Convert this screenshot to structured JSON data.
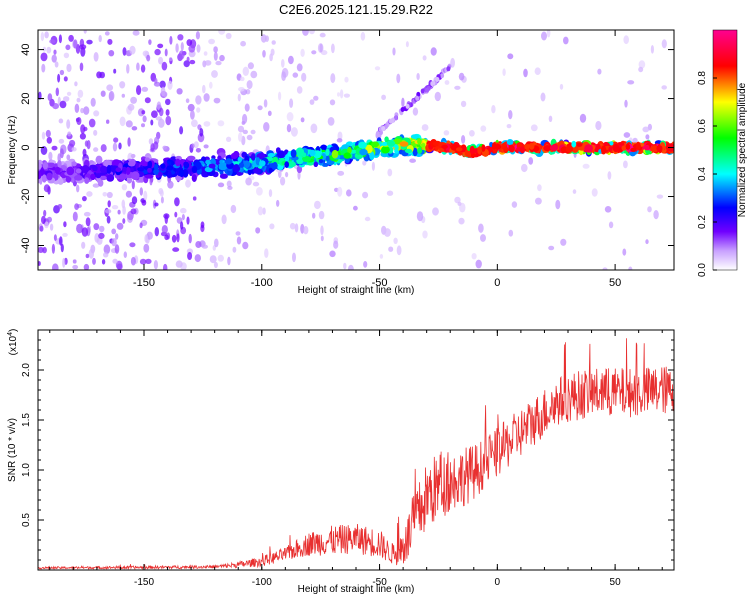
{
  "title": "C2E6.2025.121.15.29.R22",
  "colors": {
    "snr_line": "#e83030",
    "background": "#ffffff",
    "axis": "#000000"
  },
  "chart_data": [
    {
      "type": "heatmap",
      "title": "",
      "xlabel": "Height of straight line (km)",
      "ylabel": "Frequency (Hz)",
      "xlim": [
        -195,
        75
      ],
      "ylim": [
        -50,
        48
      ],
      "xticks": [
        -150,
        -100,
        -50,
        0,
        50
      ],
      "yticks": [
        -40,
        -20,
        0,
        20,
        40
      ],
      "colorbar": {
        "label": "Normalized spectral amplitude",
        "range": [
          0.0,
          1.0
        ],
        "ticks": [
          "0.0",
          "0.2",
          "0.4",
          "0.6",
          "0.8"
        ],
        "tick_values": [
          0.0,
          0.2,
          0.4,
          0.6,
          0.8
        ],
        "colormap": [
          "#ffffff",
          "#b070ff",
          "#6000ff",
          "#0000ff",
          "#00ffff",
          "#00ff00",
          "#ffff00",
          "#ff0000",
          "#ff00a0"
        ]
      },
      "ridge": {
        "x": [
          -195,
          -170,
          -150,
          -130,
          -110,
          -90,
          -70,
          -60,
          -50,
          -40,
          -30,
          -20,
          -10,
          0,
          10,
          20,
          30,
          40,
          50,
          60,
          75
        ],
        "y": [
          -10,
          -10,
          -9,
          -8,
          -7,
          -5,
          -3,
          -2,
          0,
          1,
          1,
          0,
          -2,
          0,
          0,
          0,
          0,
          0,
          0,
          0,
          0
        ],
        "amplitude": [
          0.15,
          0.2,
          0.25,
          0.3,
          0.4,
          0.5,
          0.55,
          0.55,
          0.6,
          0.7,
          0.7,
          0.8,
          0.8,
          0.85,
          0.85,
          0.85,
          0.85,
          0.85,
          0.85,
          0.85,
          0.85
        ]
      },
      "branch": {
        "x": [
          -50,
          -40,
          -30,
          -20
        ],
        "y": [
          7,
          15,
          24,
          33
        ]
      }
    },
    {
      "type": "line",
      "title": "",
      "xlabel": "Height of straight line (km)",
      "ylabel": "SNR (10 * v/v)",
      "scale_label": "(x10",
      "scale_exponent": "4",
      "xlim": [
        -195,
        75
      ],
      "ylim": [
        0,
        24000
      ],
      "xticks": [
        -150,
        -100,
        -50,
        0,
        50
      ],
      "yticks": [
        5000,
        10000,
        15000,
        20000
      ],
      "ytick_labels": [
        "0.5",
        "1.0",
        "1.5",
        "2.0"
      ],
      "series": [
        {
          "x": [
            -195,
            -150,
            -120,
            -110,
            -100,
            -90,
            -80,
            -70,
            -60,
            -50,
            -45,
            -40,
            -35,
            -30,
            -25,
            -20,
            -15,
            -10,
            -5,
            0,
            5,
            10,
            15,
            20,
            25,
            30,
            40,
            50,
            60,
            70,
            75
          ],
          "values": [
            200,
            250,
            300,
            500,
            800,
            1500,
            2500,
            2800,
            3000,
            2500,
            1500,
            2000,
            4500,
            7000,
            8000,
            8500,
            9000,
            9500,
            10500,
            11500,
            12500,
            13500,
            14500,
            15500,
            16500,
            17000,
            17500,
            17500,
            17500,
            17800,
            17500
          ],
          "noise": [
            100,
            150,
            150,
            300,
            500,
            700,
            1200,
            1500,
            1500,
            1500,
            1000,
            2000,
            3000,
            3500,
            3500,
            3000,
            3000,
            2800,
            2500,
            2500,
            2500,
            2500,
            2500,
            2500,
            2500,
            2500,
            2500,
            2500,
            2500,
            2500,
            2500
          ]
        }
      ]
    }
  ]
}
